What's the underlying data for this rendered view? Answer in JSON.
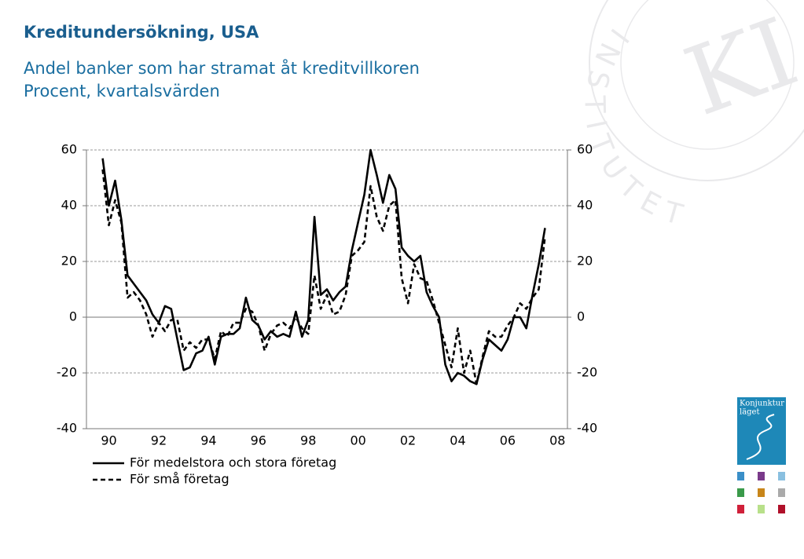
{
  "chart_data": {
    "type": "line",
    "title": "Kreditundersökning, USA",
    "subtitle": [
      "Andel banker som har stramat åt kreditvillkoren",
      "Procent, kvartalsvärden"
    ],
    "x": [
      1990.25,
      1990.5,
      1990.75,
      1991,
      1991.25,
      1991.5,
      1991.75,
      1992,
      1992.25,
      1992.5,
      1992.75,
      1993,
      1993.25,
      1993.5,
      1993.75,
      1994,
      1994.25,
      1994.5,
      1994.75,
      1995,
      1995.25,
      1995.5,
      1995.75,
      1996,
      1996.25,
      1996.5,
      1996.75,
      1997,
      1997.25,
      1997.5,
      1997.75,
      1998,
      1998.25,
      1998.5,
      1998.75,
      1999,
      1999.25,
      1999.5,
      1999.75,
      2000,
      2000.25,
      2000.5,
      2000.75,
      2001,
      2001.25,
      2001.5,
      2001.75,
      2002,
      2002.25,
      2002.5,
      2002.75,
      2003,
      2003.25,
      2003.5,
      2003.75,
      2004,
      2004.25,
      2004.5,
      2004.75,
      2005,
      2005.25,
      2005.5,
      2005.75,
      2006,
      2006.25,
      2006.5,
      2006.75,
      2007,
      2007.25,
      2007.5,
      2007.75,
      2008
    ],
    "series": [
      {
        "name": "För medelstora och stora företag",
        "color": "#000000",
        "dash": false,
        "values": [
          57,
          40,
          49,
          35,
          15,
          12,
          9,
          6,
          1,
          -2,
          4,
          3,
          -8,
          -19,
          -18,
          -13,
          -12,
          -7,
          -17,
          -7,
          -6,
          -6,
          -4,
          7,
          -1,
          -3,
          -8,
          -5,
          -7,
          -6,
          -7,
          2,
          -7,
          -1,
          36,
          8,
          10,
          6,
          9,
          11,
          24,
          34,
          44,
          60,
          51,
          41,
          51,
          46,
          25,
          22,
          20,
          22,
          9,
          4,
          0,
          -17,
          -23,
          -20,
          -21,
          -23,
          -24,
          -15,
          -8,
          -10,
          -12,
          -8,
          0,
          0,
          -4,
          8,
          19,
          32
        ]
      },
      {
        "name": "För små företag",
        "color": "#000000",
        "dash": true,
        "values": [
          53,
          33,
          42,
          34,
          7,
          9,
          6,
          1,
          -7,
          -2,
          -5,
          -1,
          -1,
          -12,
          -9,
          -11,
          -8,
          -8,
          -15,
          -5,
          -7,
          -2,
          -2,
          3,
          2,
          -3,
          -12,
          -6,
          -3,
          -2,
          -4,
          0,
          -4,
          -6,
          15,
          3,
          8,
          1,
          2,
          8,
          22,
          24,
          27,
          47,
          36,
          31,
          40,
          42,
          14,
          5,
          19,
          14,
          13,
          6,
          -2,
          -10,
          -18,
          -4,
          -20,
          -12,
          -24,
          -14,
          -5,
          -7,
          -7,
          -3,
          0,
          5,
          3,
          7,
          10,
          29
        ]
      }
    ],
    "xlim": [
      1989.6,
      2008.9
    ],
    "xticks": [
      {
        "value": 1990.5,
        "label": "90"
      },
      {
        "value": 1992.5,
        "label": "92"
      },
      {
        "value": 1994.5,
        "label": "94"
      },
      {
        "value": 1996.5,
        "label": "96"
      },
      {
        "value": 1998.5,
        "label": "98"
      },
      {
        "value": 2000.5,
        "label": "00"
      },
      {
        "value": 2002.5,
        "label": "02"
      },
      {
        "value": 2004.5,
        "label": "04"
      },
      {
        "value": 2006.5,
        "label": "06"
      },
      {
        "value": 2008.5,
        "label": "08"
      }
    ],
    "ylim": [
      -40,
      60
    ],
    "yticks": [
      -40,
      -20,
      0,
      20,
      40,
      60
    ],
    "grid": true
  },
  "badge": [
    "Konjunktur",
    "läget"
  ],
  "watermark": {
    "letters": "KI",
    "ring": "INSTITUTET"
  }
}
